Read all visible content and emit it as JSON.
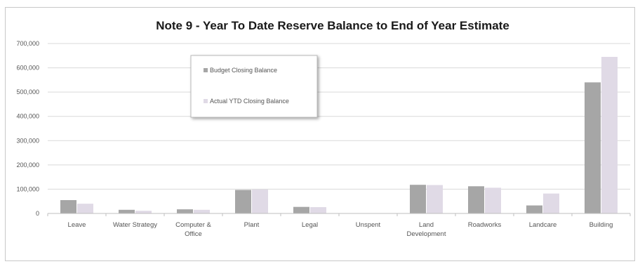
{
  "chart_data": {
    "type": "bar",
    "title": "Note 9 - Year To Date Reserve Balance to End of Year Estimate",
    "xlabel": "",
    "ylabel": "",
    "categories": [
      [
        "Leave"
      ],
      [
        "Water Strategy"
      ],
      [
        "Computer &",
        "Office"
      ],
      [
        "Plant"
      ],
      [
        "Legal"
      ],
      [
        "Unspent"
      ],
      [
        "Land",
        "Development"
      ],
      [
        "Roadworks"
      ],
      [
        "Landcare"
      ],
      [
        "Building"
      ]
    ],
    "series": [
      {
        "name": "Budget Closing Balance",
        "color": "#a6a6a6",
        "values": [
          55000,
          15000,
          17000,
          97000,
          27000,
          0,
          118000,
          112000,
          33000,
          540000
        ]
      },
      {
        "name": "Actual YTD Closing Balance",
        "color": "#e0dae6",
        "values": [
          40000,
          11000,
          15000,
          99000,
          26000,
          0,
          117000,
          106000,
          82000,
          645000
        ]
      }
    ],
    "ylim": [
      0,
      700000
    ],
    "yticks": [
      "0",
      "100,000",
      "200,000",
      "300,000",
      "400,000",
      "500,000",
      "600,000",
      "700,000"
    ],
    "grid": true,
    "legend_position": "top-left"
  }
}
